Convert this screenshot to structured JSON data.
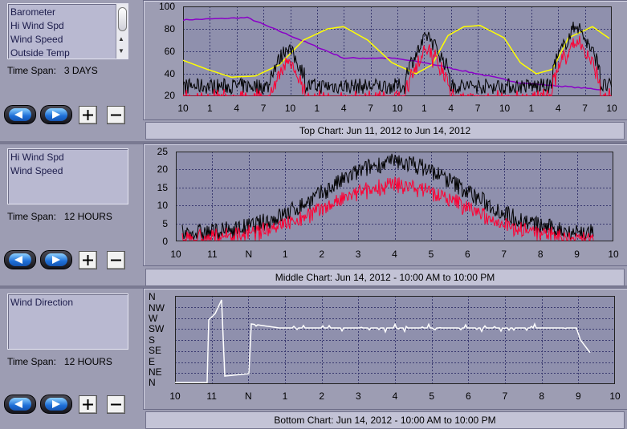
{
  "top": {
    "list_items": [
      "Barometer",
      "Hi Wind Spd",
      "Wind Speed",
      "Outside Temp"
    ],
    "time_span_label": "Time Span:",
    "time_span_value": "3 DAYS",
    "y_ticks": [
      "100",
      "80",
      "60",
      "40",
      "20"
    ],
    "x_ticks": [
      "10",
      "1",
      "4",
      "7",
      "10",
      "1",
      "4",
      "7",
      "10",
      "1",
      "4",
      "7",
      "10",
      "1",
      "4",
      "7",
      "10"
    ],
    "caption": "Top Chart:  Jun 11, 2012  to  Jun 14, 2012",
    "series_colors": {
      "barometer": "#8a00c8",
      "hi_wind_spd": "#000000",
      "wind_speed": "#ff0033",
      "outside_temp": "#ffff00"
    }
  },
  "middle": {
    "list_items": [
      "Hi Wind Spd",
      "Wind Speed"
    ],
    "time_span_label": "Time Span:",
    "time_span_value": "12 HOURS",
    "y_ticks": [
      "25",
      "20",
      "15",
      "10",
      "5",
      "0"
    ],
    "x_ticks": [
      "10",
      "11",
      "N",
      "1",
      "2",
      "3",
      "4",
      "5",
      "6",
      "7",
      "8",
      "9",
      "10"
    ],
    "caption": "Middle Chart:  Jun 14, 2012 - 10:00 AM  to  10:00 PM"
  },
  "bottom": {
    "list_items": [
      "Wind Direction"
    ],
    "time_span_label": "Time Span:",
    "time_span_value": "12 HOURS",
    "y_ticks": [
      "N",
      "NW",
      "W",
      "SW",
      "S",
      "SE",
      "E",
      "NE",
      "N"
    ],
    "x_ticks": [
      "10",
      "11",
      "N",
      "1",
      "2",
      "3",
      "4",
      "5",
      "6",
      "7",
      "8",
      "9",
      "10"
    ],
    "caption": "Bottom Chart:  Jun 14, 2012 - 10:00 AM  to  10:00 PM",
    "series_color": "#ffffff"
  }
}
